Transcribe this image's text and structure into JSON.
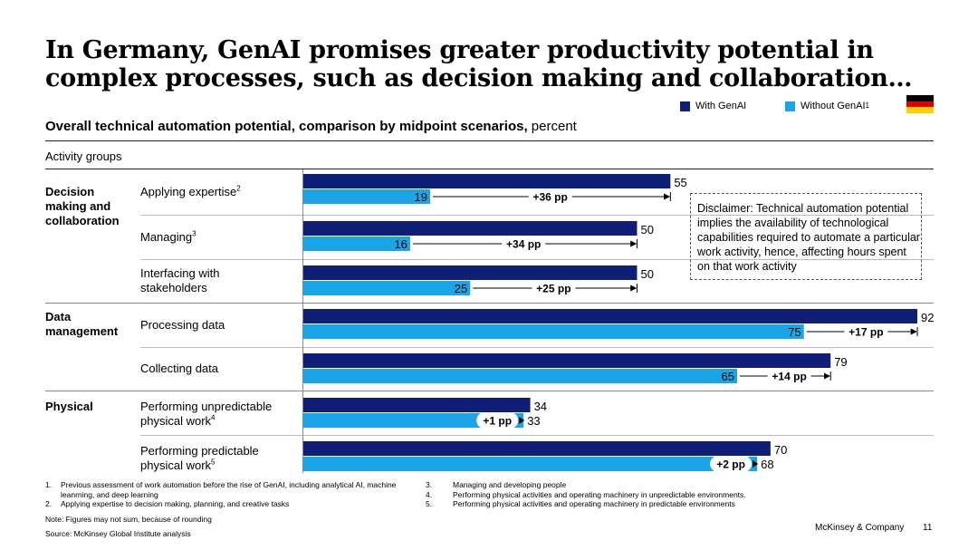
{
  "title": "In Germany, GenAI promises greater productivity potential in complex processes, such as decision making and collaboration…",
  "subtitle_bold": "Overall technical automation potential, comparison by midpoint scenarios,",
  "subtitle_rest": " percent",
  "legend": {
    "with": "With GenAI",
    "without": "Without GenAI",
    "without_sup": "1",
    "with_color": "#0f1f78",
    "without_color": "#1aa5e6"
  },
  "flag": {
    "colors": [
      "#000000",
      "#dd0000",
      "#ffce00"
    ]
  },
  "activity_groups_label": "Activity groups",
  "groups": {
    "decision": "Decision making and collaboration",
    "data": "Data management",
    "physical": "Physical"
  },
  "labels": {
    "applying": "Applying expertise",
    "applying_sup": "2",
    "managing": "Managing",
    "managing_sup": "3",
    "interfacing": "Interfacing with stakeholders",
    "processing": "Processing data",
    "collecting": "Collecting data",
    "unpredictable": "Performing unpredictable physical work",
    "unpredictable_sup": "4",
    "predictable": "Performing predictable physical work",
    "predictable_sup": "5"
  },
  "chart_data": {
    "type": "bar",
    "orientation": "horizontal",
    "title": "Overall technical automation potential, comparison by midpoint scenarios, percent",
    "unit": "percent",
    "xlim": [
      0,
      100
    ],
    "categories": [
      "Applying expertise",
      "Managing",
      "Interfacing with stakeholders",
      "Processing data",
      "Collecting data",
      "Performing unpredictable physical work",
      "Performing predictable physical work"
    ],
    "series": [
      {
        "name": "With GenAI",
        "values": [
          55,
          50,
          50,
          92,
          79,
          34,
          70
        ]
      },
      {
        "name": "Without GenAI",
        "values": [
          19,
          16,
          25,
          75,
          65,
          33,
          68
        ]
      }
    ],
    "difference_labels": [
      "+36 pp",
      "+34 pp",
      "+25 pp",
      "+17 pp",
      "+14 pp",
      "+1 pp",
      "+2 pp"
    ]
  },
  "disclaimer": "Disclaimer: Technical automation potential implies the availability of technological capabilities required to automate a particular work activity, hence, affecting hours spent on that work activity",
  "footnotes_left": [
    {
      "num": "1.",
      "text": "Previous assessment of work automation before the rise of GenAI, including analytical AI, machine leanrning, and deep learning"
    },
    {
      "num": "2.",
      "text": "Applying expertise to decision making, planning, and creative tasks"
    }
  ],
  "footnotes_right": [
    {
      "num": "3.",
      "text": "Managing and developing people"
    },
    {
      "num": "4.",
      "text": "Performing physical activities and operating machinery in unpredictable environments."
    },
    {
      "num": "5.",
      "text": "Performing physical activities and operating machinery in predictable environments"
    }
  ],
  "note": "Note: Figures may not sum, because of rounding",
  "source": "Source: McKinsey Global Institute analysis",
  "brand": "McKinsey & Company",
  "page_number": "11"
}
